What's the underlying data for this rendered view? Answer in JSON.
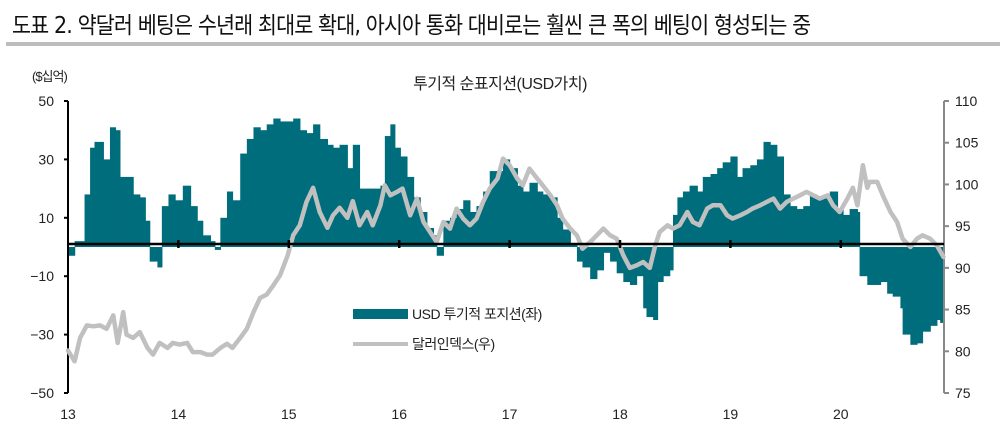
{
  "title": "도표 2. 약달러 베팅은 수년래 최대로 확대, 아시아 통화 대비로는 훨씬 큰 폭의 베팅이 형성되는 중",
  "chart_data": {
    "type": "bar+line",
    "subtitle": "투기적 순표지션(USD가치)",
    "y_left_unit": "($십억)",
    "y_left_lim": [
      -50,
      50
    ],
    "y_left_ticks": [
      "50",
      "30",
      "10",
      "-10",
      "-30",
      "-50"
    ],
    "y_right_lim": [
      75,
      110
    ],
    "y_right_ticks": [
      "110",
      "105",
      "100",
      "95",
      "90",
      "85",
      "80",
      "75"
    ],
    "x_lim": [
      2013,
      2020.95
    ],
    "x_ticks": [
      "13",
      "14",
      "15",
      "16",
      "17",
      "18",
      "19",
      "20"
    ],
    "grid": false,
    "legend_position": "center",
    "colors": {
      "position": "#006d7c",
      "dollar_index": "#c0c0c0"
    },
    "series": [
      {
        "name": "USD 투기적 포지션(좌)",
        "type": "bar",
        "axis": "left",
        "points": [
          [
            2013.0,
            -3
          ],
          [
            2013.06,
            2
          ],
          [
            2013.15,
            18
          ],
          [
            2013.2,
            34
          ],
          [
            2013.24,
            36
          ],
          [
            2013.32,
            30
          ],
          [
            2013.38,
            41
          ],
          [
            2013.43,
            40
          ],
          [
            2013.47,
            24
          ],
          [
            2013.53,
            24
          ],
          [
            2013.59,
            18
          ],
          [
            2013.65,
            17
          ],
          [
            2013.7,
            9
          ],
          [
            2013.74,
            -5
          ],
          [
            2013.81,
            -7
          ],
          [
            2013.85,
            14
          ],
          [
            2013.91,
            18
          ],
          [
            2013.97,
            16
          ],
          [
            2014.04,
            21
          ],
          [
            2014.11,
            14
          ],
          [
            2014.17,
            9
          ],
          [
            2014.22,
            4
          ],
          [
            2014.29,
            2
          ],
          [
            2014.33,
            -1
          ],
          [
            2014.38,
            10
          ],
          [
            2014.44,
            19
          ],
          [
            2014.49,
            16
          ],
          [
            2014.56,
            32
          ],
          [
            2014.62,
            37
          ],
          [
            2014.68,
            41
          ],
          [
            2014.74,
            40
          ],
          [
            2014.8,
            42
          ],
          [
            2014.86,
            44
          ],
          [
            2014.92,
            43
          ],
          [
            2014.99,
            43
          ],
          [
            2015.04,
            44
          ],
          [
            2015.1,
            40
          ],
          [
            2015.16,
            39
          ],
          [
            2015.22,
            42
          ],
          [
            2015.28,
            37
          ],
          [
            2015.35,
            35
          ],
          [
            2015.4,
            34
          ],
          [
            2015.46,
            35
          ],
          [
            2015.53,
            27
          ],
          [
            2015.58,
            35
          ],
          [
            2015.64,
            20
          ],
          [
            2015.71,
            20
          ],
          [
            2015.76,
            20
          ],
          [
            2015.83,
            21
          ],
          [
            2015.87,
            38
          ],
          [
            2015.92,
            42
          ],
          [
            2015.96,
            34
          ],
          [
            2016.01,
            31
          ],
          [
            2016.07,
            24
          ],
          [
            2016.13,
            17
          ],
          [
            2016.19,
            12
          ],
          [
            2016.25,
            6.5
          ],
          [
            2016.31,
            4
          ],
          [
            2016.34,
            -3
          ],
          [
            2016.4,
            9
          ],
          [
            2016.46,
            10
          ],
          [
            2016.52,
            13
          ],
          [
            2016.58,
            16
          ],
          [
            2016.64,
            12
          ],
          [
            2016.7,
            14
          ],
          [
            2016.76,
            19
          ],
          [
            2016.82,
            26
          ],
          [
            2016.89,
            26
          ],
          [
            2016.94,
            30
          ],
          [
            2017.0,
            27
          ],
          [
            2017.07,
            21
          ],
          [
            2017.12,
            19
          ],
          [
            2017.18,
            22
          ],
          [
            2017.25,
            19
          ],
          [
            2017.3,
            18
          ],
          [
            2017.37,
            17
          ],
          [
            2017.43,
            10
          ],
          [
            2017.48,
            6
          ],
          [
            2017.55,
            1
          ],
          [
            2017.61,
            -5
          ],
          [
            2017.66,
            -7
          ],
          [
            2017.73,
            -11
          ],
          [
            2017.79,
            -8
          ],
          [
            2017.85,
            -2
          ],
          [
            2017.91,
            -5
          ],
          [
            2017.97,
            -9
          ],
          [
            2018.03,
            -12
          ],
          [
            2018.09,
            -13
          ],
          [
            2018.15,
            -10
          ],
          [
            2018.21,
            -21
          ],
          [
            2018.24,
            -24
          ],
          [
            2018.3,
            -25
          ],
          [
            2018.34,
            -12
          ],
          [
            2018.39,
            -10
          ],
          [
            2018.45,
            -8
          ],
          [
            2018.48,
            11
          ],
          [
            2018.52,
            17
          ],
          [
            2018.57,
            19
          ],
          [
            2018.63,
            21
          ],
          [
            2018.7,
            19
          ],
          [
            2018.75,
            24
          ],
          [
            2018.82,
            25
          ],
          [
            2018.88,
            27
          ],
          [
            2018.93,
            29
          ],
          [
            2019.0,
            31
          ],
          [
            2019.06,
            24
          ],
          [
            2019.11,
            27
          ],
          [
            2019.18,
            28
          ],
          [
            2019.24,
            30
          ],
          [
            2019.3,
            36
          ],
          [
            2019.36,
            35
          ],
          [
            2019.42,
            31
          ],
          [
            2019.48,
            18
          ],
          [
            2019.54,
            14
          ],
          [
            2019.6,
            13
          ],
          [
            2019.66,
            14
          ],
          [
            2019.72,
            18
          ],
          [
            2019.78,
            17
          ],
          [
            2019.84,
            17
          ],
          [
            2019.9,
            19
          ],
          [
            2019.97,
            13
          ],
          [
            2020.02,
            11
          ],
          [
            2020.08,
            13
          ],
          [
            2020.15,
            12
          ],
          [
            2020.17,
            -10
          ],
          [
            2020.24,
            -13
          ],
          [
            2020.29,
            -13
          ],
          [
            2020.36,
            -12
          ],
          [
            2020.42,
            -16
          ],
          [
            2020.47,
            -17
          ],
          [
            2020.54,
            -21
          ],
          [
            2020.56,
            -30
          ],
          [
            2020.63,
            -33.5
          ],
          [
            2020.69,
            -33
          ],
          [
            2020.74,
            -29
          ],
          [
            2020.81,
            -27
          ],
          [
            2020.87,
            -25
          ],
          [
            2020.9,
            -26
          ]
        ]
      },
      {
        "name": "달러인덱스(우)",
        "type": "line",
        "axis": "right",
        "points": [
          [
            2013.0,
            80.1
          ],
          [
            2013.06,
            78.8
          ],
          [
            2013.11,
            81.6
          ],
          [
            2013.17,
            83.1
          ],
          [
            2013.23,
            83
          ],
          [
            2013.29,
            83.1
          ],
          [
            2013.35,
            82.7
          ],
          [
            2013.41,
            84.3
          ],
          [
            2013.45,
            81
          ],
          [
            2013.5,
            84.7
          ],
          [
            2013.53,
            82
          ],
          [
            2013.59,
            81.6
          ],
          [
            2013.65,
            82.3
          ],
          [
            2013.72,
            80.4
          ],
          [
            2013.77,
            79.6
          ],
          [
            2013.83,
            81
          ],
          [
            2013.9,
            80.4
          ],
          [
            2013.95,
            81
          ],
          [
            2014.01,
            80.8
          ],
          [
            2014.08,
            81
          ],
          [
            2014.13,
            79.9
          ],
          [
            2014.2,
            79.9
          ],
          [
            2014.26,
            79.6
          ],
          [
            2014.31,
            79.6
          ],
          [
            2014.38,
            80.4
          ],
          [
            2014.44,
            80.9
          ],
          [
            2014.49,
            80.4
          ],
          [
            2014.56,
            81.6
          ],
          [
            2014.62,
            82.7
          ],
          [
            2014.68,
            84.7
          ],
          [
            2014.74,
            86.4
          ],
          [
            2014.8,
            86.8
          ],
          [
            2014.86,
            87.9
          ],
          [
            2014.92,
            89.1
          ],
          [
            2014.99,
            91.5
          ],
          [
            2015.04,
            93.9
          ],
          [
            2015.1,
            95.1
          ],
          [
            2015.16,
            97.9
          ],
          [
            2015.22,
            99.6
          ],
          [
            2015.28,
            96.7
          ],
          [
            2015.35,
            94.8
          ],
          [
            2015.4,
            96.3
          ],
          [
            2015.46,
            97.2
          ],
          [
            2015.53,
            96
          ],
          [
            2015.58,
            98
          ],
          [
            2015.64,
            95.1
          ],
          [
            2015.71,
            96.7
          ],
          [
            2015.76,
            95.1
          ],
          [
            2015.83,
            97.5
          ],
          [
            2015.87,
            99.9
          ],
          [
            2015.92,
            98.7
          ],
          [
            2015.98,
            99.1
          ],
          [
            2016.03,
            99.5
          ],
          [
            2016.1,
            96.3
          ],
          [
            2016.16,
            98.3
          ],
          [
            2016.22,
            95.5
          ],
          [
            2016.28,
            94.3
          ],
          [
            2016.34,
            93.1
          ],
          [
            2016.4,
            95.5
          ],
          [
            2016.46,
            94.7
          ],
          [
            2016.52,
            97.1
          ],
          [
            2016.58,
            95.9
          ],
          [
            2016.64,
            95.1
          ],
          [
            2016.7,
            95.9
          ],
          [
            2016.76,
            97.9
          ],
          [
            2016.82,
            99.5
          ],
          [
            2016.89,
            100.7
          ],
          [
            2016.94,
            103.1
          ],
          [
            2017.0,
            102.3
          ],
          [
            2017.07,
            100.7
          ],
          [
            2017.12,
            99.9
          ],
          [
            2017.18,
            101.9
          ],
          [
            2017.25,
            100.7
          ],
          [
            2017.3,
            99.9
          ],
          [
            2017.37,
            98.7
          ],
          [
            2017.43,
            97.5
          ],
          [
            2017.48,
            95.9
          ],
          [
            2017.55,
            94.7
          ],
          [
            2017.61,
            93.9
          ],
          [
            2017.66,
            92.3
          ],
          [
            2017.73,
            93.1
          ],
          [
            2017.79,
            93.9
          ],
          [
            2017.85,
            94.7
          ],
          [
            2017.91,
            93.9
          ],
          [
            2017.97,
            93.5
          ],
          [
            2018.03,
            91.5
          ],
          [
            2018.09,
            90
          ],
          [
            2018.15,
            90.3
          ],
          [
            2018.21,
            90.7
          ],
          [
            2018.27,
            90
          ],
          [
            2018.32,
            92.7
          ],
          [
            2018.36,
            94.3
          ],
          [
            2018.43,
            95.1
          ],
          [
            2018.48,
            94.7
          ],
          [
            2018.54,
            95.1
          ],
          [
            2018.61,
            96.7
          ],
          [
            2018.66,
            95.5
          ],
          [
            2018.72,
            95.1
          ],
          [
            2018.79,
            97.1
          ],
          [
            2018.84,
            97.5
          ],
          [
            2018.91,
            97.5
          ],
          [
            2018.97,
            96.3
          ],
          [
            2019.02,
            95.9
          ],
          [
            2019.09,
            96.3
          ],
          [
            2019.15,
            96.7
          ],
          [
            2019.2,
            97.1
          ],
          [
            2019.27,
            97.5
          ],
          [
            2019.33,
            97.9
          ],
          [
            2019.39,
            98.3
          ],
          [
            2019.45,
            97.1
          ],
          [
            2019.51,
            97.9
          ],
          [
            2019.57,
            98.3
          ],
          [
            2019.63,
            98.7
          ],
          [
            2019.69,
            99.1
          ],
          [
            2019.75,
            98.7
          ],
          [
            2019.81,
            98.3
          ],
          [
            2019.88,
            98.7
          ],
          [
            2019.93,
            97.5
          ],
          [
            2019.99,
            96.7
          ],
          [
            2020.06,
            98.3
          ],
          [
            2020.11,
            99.6
          ],
          [
            2020.15,
            97.5
          ],
          [
            2020.2,
            102.3
          ],
          [
            2020.24,
            99.6
          ],
          [
            2020.26,
            100.3
          ],
          [
            2020.33,
            100.3
          ],
          [
            2020.38,
            98.7
          ],
          [
            2020.45,
            96.7
          ],
          [
            2020.51,
            95.5
          ],
          [
            2020.56,
            93.5
          ],
          [
            2020.63,
            92.5
          ],
          [
            2020.69,
            93.5
          ],
          [
            2020.74,
            93.9
          ],
          [
            2020.81,
            93.5
          ],
          [
            2020.87,
            92.7
          ],
          [
            2020.93,
            91.3
          ]
        ]
      }
    ]
  }
}
